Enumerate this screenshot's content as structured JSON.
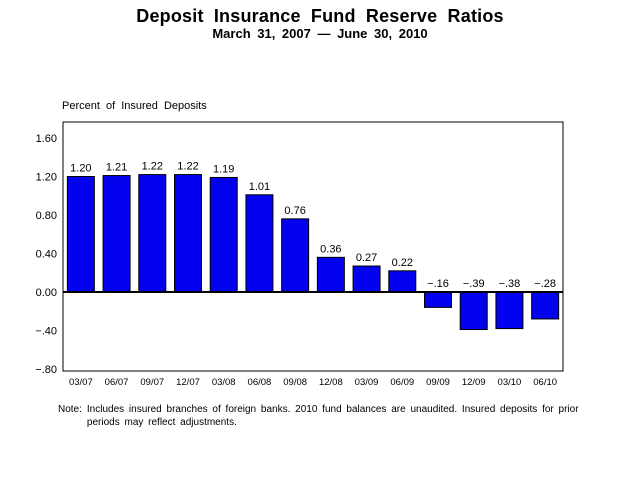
{
  "header": {
    "title": "Deposit Insurance Fund Reserve Ratios",
    "subtitle": "March 31, 2007 — June 30, 2010"
  },
  "chart_data": {
    "type": "bar",
    "title": "Deposit Insurance Fund Reserve Ratios",
    "subtitle": "March 31, 2007 — June 30, 2010",
    "axis_title": "Percent of Insured Deposits",
    "xlabel": "",
    "ylabel": "Percent of Insured Deposits",
    "categories": [
      "03/07",
      "06/07",
      "09/07",
      "12/07",
      "03/08",
      "06/08",
      "09/08",
      "12/08",
      "03/09",
      "06/09",
      "09/09",
      "12/09",
      "03/10",
      "06/10"
    ],
    "values": [
      1.2,
      1.21,
      1.22,
      1.22,
      1.19,
      1.01,
      0.76,
      0.36,
      0.27,
      0.22,
      -0.16,
      -0.39,
      -0.38,
      -0.28
    ],
    "value_labels": [
      "1.20",
      "1.21",
      "1.22",
      "1.22",
      "1.19",
      "1.01",
      "0.76",
      "0.36",
      "0.27",
      "0.22",
      "−.16",
      "−.39",
      "−.38",
      "−.28"
    ],
    "y_ticks": [
      {
        "value": 1.6,
        "label": "1.60"
      },
      {
        "value": 1.2,
        "label": "1.20"
      },
      {
        "value": 0.8,
        "label": "0.80"
      },
      {
        "value": 0.4,
        "label": "0.40"
      },
      {
        "value": 0.0,
        "label": "0.00"
      },
      {
        "value": -0.4,
        "label": "−.40"
      },
      {
        "value": -0.8,
        "label": "−.80"
      }
    ],
    "ylim": [
      -0.82,
      1.66
    ],
    "grid": false,
    "zero_line": true,
    "legend": "none",
    "bar_color": "#0202EE",
    "bar_border_color": "#000000",
    "frame_color": "#000000",
    "text_color": "#000000"
  },
  "note": {
    "label": "Note:",
    "text": "Includes insured branches of foreign banks. 2010 fund balances are unaudited. Insured deposits for prior periods may reflect adjustments."
  }
}
